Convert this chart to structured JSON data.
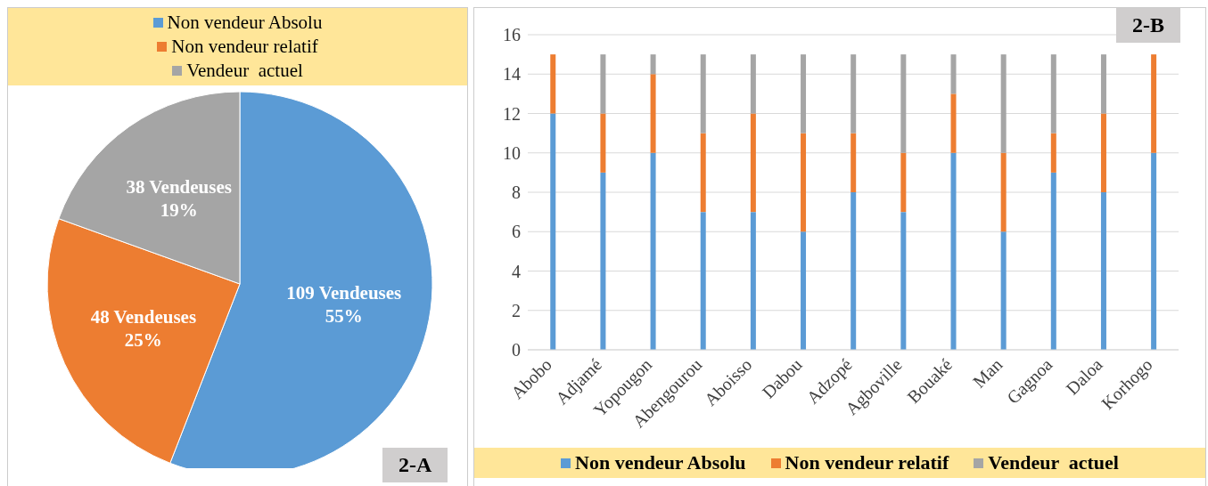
{
  "chart_data": [
    {
      "type": "pie",
      "categories": [
        "Non vendeur Absolu",
        "Non vendeur relatif",
        "Vendeur  actuel"
      ],
      "values": [
        109,
        48,
        38
      ],
      "colors": [
        "#5b9bd5",
        "#ed7d31",
        "#a5a5a5"
      ],
      "value_labels": [
        "109 Vendeuses\n55%",
        "48 Vendeuses\n25%",
        "38 Vendeuses\n19%"
      ],
      "legend": "top",
      "annotations": [
        "2-A"
      ]
    },
    {
      "type": "bar",
      "stacked": true,
      "categories": [
        "Abobo",
        "Adjamé",
        "Yopougon",
        "Abengourou",
        "Aboisso",
        "Dabou",
        "Adzopé",
        "Agboville",
        "Bouaké",
        "Man",
        "Gagnoa",
        "Daloa",
        "Korhogo"
      ],
      "series": [
        {
          "name": "Non vendeur Absolu",
          "color": "#5b9bd5",
          "values": [
            12,
            9,
            10,
            7,
            7,
            6,
            8,
            7,
            10,
            6,
            9,
            8,
            10
          ]
        },
        {
          "name": "Non vendeur relatif",
          "color": "#ed7d31",
          "values": [
            3,
            3,
            4,
            4,
            5,
            5,
            3,
            3,
            3,
            4,
            2,
            4,
            5
          ]
        },
        {
          "name": "Vendeur  actuel",
          "color": "#a5a5a5",
          "values": [
            0,
            3,
            1,
            4,
            3,
            4,
            4,
            5,
            2,
            5,
            4,
            3,
            0
          ]
        }
      ],
      "ylim": [
        0,
        16
      ],
      "yticks": [
        0,
        2,
        4,
        6,
        8,
        10,
        12,
        14,
        16
      ],
      "grid": "y",
      "legend": "bottom",
      "annotations": [
        "2-B"
      ]
    }
  ]
}
